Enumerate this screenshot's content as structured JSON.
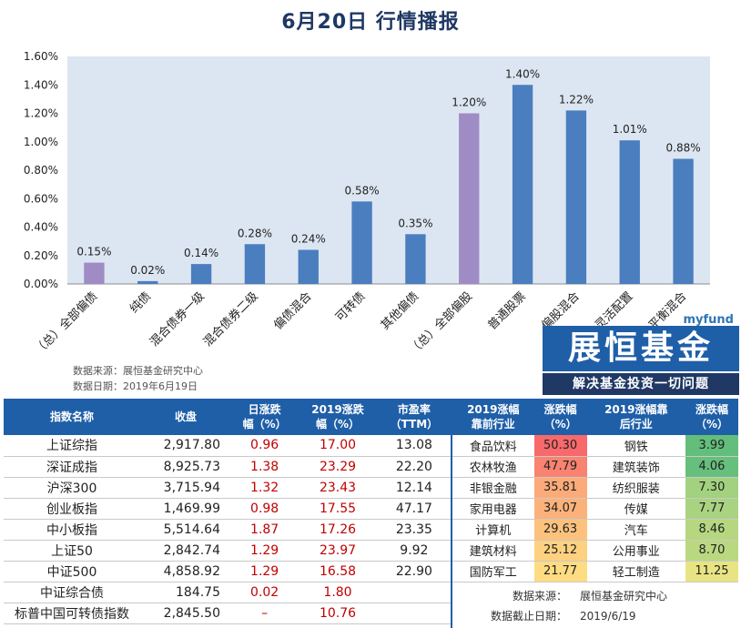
{
  "title": "6月20日  行情播报",
  "chart_data": {
    "type": "bar",
    "categories": [
      "（总）全部偏债",
      "纯债",
      "混合债券一级",
      "混合债券二级",
      "偏债混合",
      "可转债",
      "其他偏债",
      "（总）全部偏股",
      "普通股票",
      "偏股混合",
      "灵活配置",
      "平衡混合"
    ],
    "values": [
      0.15,
      0.02,
      0.14,
      0.28,
      0.24,
      0.58,
      0.35,
      1.2,
      1.4,
      1.22,
      1.01,
      0.88
    ],
    "value_labels": [
      "0.15%",
      "0.02%",
      "0.14%",
      "0.28%",
      "0.24%",
      "0.58%",
      "0.35%",
      "1.20%",
      "1.40%",
      "1.22%",
      "1.01%",
      "0.88%"
    ],
    "y_ticks": [
      "0.00%",
      "0.20%",
      "0.40%",
      "0.60%",
      "0.80%",
      "1.00%",
      "1.20%",
      "1.40%",
      "1.60%"
    ],
    "ylim": [
      0,
      1.6
    ],
    "colors": [
      "#a08cc4",
      "#4a7ebf",
      "#4a7ebf",
      "#4a7ebf",
      "#4a7ebf",
      "#4a7ebf",
      "#4a7ebf",
      "#a08cc4",
      "#4a7ebf",
      "#4a7ebf",
      "#4a7ebf",
      "#4a7ebf"
    ],
    "plot_background": "#dce6f2"
  },
  "source": {
    "line1": "数据来源：展恒基金研究中心",
    "line2": "数据日期：2019年6月19日"
  },
  "logo": {
    "top": "myfund",
    "main": "展恒基金",
    "sub": "解决基金投资一切问题"
  },
  "index_table": {
    "headers": [
      "指数名称",
      "收盘",
      "日涨跌\n幅（%）",
      "2019涨跌\n幅（%）",
      "市盈率\n（TTM）"
    ],
    "rows": [
      {
        "name": "上证综指",
        "close": "2,917.80",
        "day": "0.96",
        "ytd": "17.00",
        "pe": "13.08"
      },
      {
        "name": "深证成指",
        "close": "8,925.73",
        "day": "1.38",
        "ytd": "23.29",
        "pe": "22.20"
      },
      {
        "name": "沪深300",
        "close": "3,715.94",
        "day": "1.32",
        "ytd": "23.43",
        "pe": "12.14"
      },
      {
        "name": "创业板指",
        "close": "1,469.99",
        "day": "0.98",
        "ytd": "17.55",
        "pe": "47.17"
      },
      {
        "name": "中小板指",
        "close": "5,514.64",
        "day": "1.87",
        "ytd": "17.26",
        "pe": "23.35"
      },
      {
        "name": "上证50",
        "close": "2,842.74",
        "day": "1.29",
        "ytd": "23.97",
        "pe": "9.92"
      },
      {
        "name": "中证500",
        "close": "4,858.92",
        "day": "1.29",
        "ytd": "16.58",
        "pe": "22.90"
      },
      {
        "name": "中证综合债",
        "close": "184.75",
        "day": "0.02",
        "ytd": "1.80",
        "pe": ""
      },
      {
        "name": "标普中国可转债指数",
        "close": "2,845.50",
        "day": "–",
        "ytd": "10.76",
        "pe": ""
      }
    ]
  },
  "industry_table": {
    "headers": [
      "2019涨幅\n靠前行业",
      "涨跌幅\n（%）",
      "2019涨幅靠\n后行业",
      "涨跌幅\n（%）"
    ],
    "rows": [
      {
        "top": "食品饮料",
        "top_val": "50.30",
        "top_color": "#f8696b",
        "bottom": "钢铁",
        "bottom_val": "3.99",
        "bottom_color": "#63be7b"
      },
      {
        "top": "农林牧渔",
        "top_val": "47.79",
        "top_color": "#f98370",
        "bottom": "建筑装饰",
        "bottom_val": "4.06",
        "bottom_color": "#66bf7c"
      },
      {
        "top": "非银金融",
        "top_val": "35.81",
        "top_color": "#fbab79",
        "bottom": "纺织服装",
        "bottom_val": "7.30",
        "bottom_color": "#a2d17f"
      },
      {
        "top": "家用电器",
        "top_val": "34.07",
        "top_color": "#fbb27a",
        "bottom": "传媒",
        "bottom_val": "7.77",
        "bottom_color": "#a9d380"
      },
      {
        "top": "计算机",
        "top_val": "29.63",
        "top_color": "#fcc27d",
        "bottom": "汽车",
        "bottom_val": "8.46",
        "bottom_color": "#b6d780"
      },
      {
        "top": "建筑材料",
        "top_val": "25.12",
        "top_color": "#fdd17f",
        "bottom": "公用事业",
        "bottom_val": "8.70",
        "bottom_color": "#bad880"
      },
      {
        "top": "国防军工",
        "top_val": "21.77",
        "top_color": "#fedc81",
        "bottom": "轻工制造",
        "bottom_val": "11.25",
        "bottom_color": "#e8e483"
      }
    ]
  },
  "industry_source": {
    "k1": "数据来源：",
    "v1": "展恒基金研究中心",
    "k2": "数据截止日期：",
    "v2": "2019/6/19"
  }
}
